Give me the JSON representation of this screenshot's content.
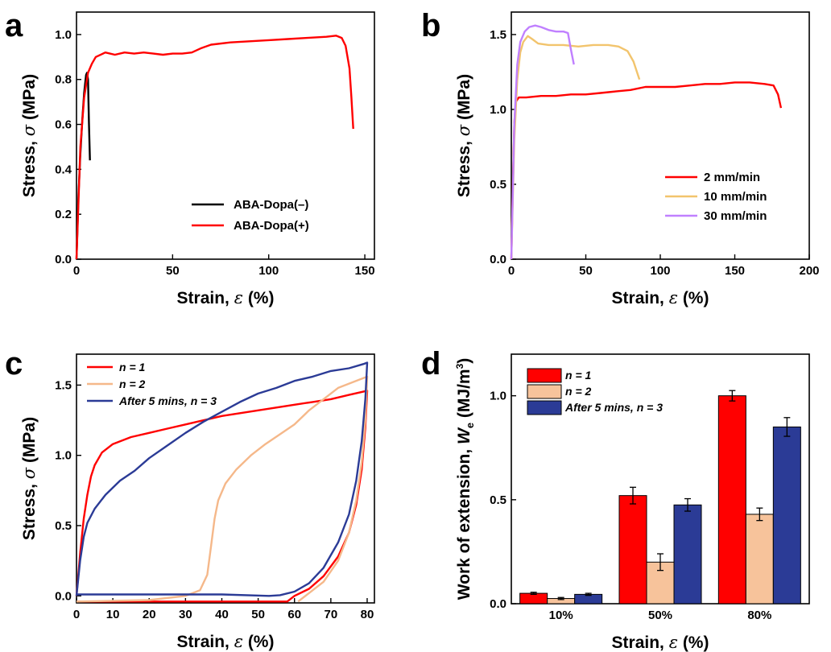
{
  "chart_data": [
    {
      "panel": "a",
      "type": "line",
      "xlabel_prefix": "Strain,",
      "xlabel_symbol": "ε",
      "xlabel_unit": "(%)",
      "ylabel_prefix": "Stress,",
      "ylabel_symbol": "σ",
      "ylabel_unit": "(MPa)",
      "xlim": [
        0,
        155
      ],
      "ylim": [
        0,
        1.1
      ],
      "xticks": [
        "0",
        "50",
        "100",
        "150"
      ],
      "xtick_values": [
        0,
        50,
        100,
        150
      ],
      "yticks": [
        "0.0",
        "0.2",
        "0.4",
        "0.6",
        "0.8",
        "1.0"
      ],
      "ytick_values": [
        0,
        0.2,
        0.4,
        0.6,
        0.8,
        1.0
      ],
      "legend_position": "bottom-right",
      "series": [
        {
          "name": "ABA-Dopa(–)",
          "color": "#000000",
          "points": [
            [
              0,
              0
            ],
            [
              1,
              0.28
            ],
            [
              2,
              0.47
            ],
            [
              3,
              0.62
            ],
            [
              4,
              0.74
            ],
            [
              5,
              0.82
            ],
            [
              5.5,
              0.83
            ],
            [
              6,
              0.8
            ],
            [
              6.5,
              0.6
            ],
            [
              7,
              0.44
            ]
          ]
        },
        {
          "name": "ABA-Dopa(+)",
          "color": "#ff0000",
          "points": [
            [
              0,
              0
            ],
            [
              2,
              0.5
            ],
            [
              4,
              0.72
            ],
            [
              6,
              0.83
            ],
            [
              8,
              0.87
            ],
            [
              10,
              0.9
            ],
            [
              15,
              0.92
            ],
            [
              20,
              0.91
            ],
            [
              25,
              0.92
            ],
            [
              30,
              0.915
            ],
            [
              35,
              0.92
            ],
            [
              40,
              0.915
            ],
            [
              45,
              0.91
            ],
            [
              50,
              0.915
            ],
            [
              55,
              0.915
            ],
            [
              60,
              0.92
            ],
            [
              65,
              0.94
            ],
            [
              70,
              0.955
            ],
            [
              80,
              0.965
            ],
            [
              90,
              0.97
            ],
            [
              100,
              0.975
            ],
            [
              110,
              0.98
            ],
            [
              120,
              0.985
            ],
            [
              130,
              0.99
            ],
            [
              135,
              0.995
            ],
            [
              138,
              0.985
            ],
            [
              140,
              0.95
            ],
            [
              142,
              0.85
            ],
            [
              143,
              0.72
            ],
            [
              144,
              0.58
            ]
          ]
        }
      ]
    },
    {
      "panel": "b",
      "type": "line",
      "xlabel_prefix": "Strain,",
      "xlabel_symbol": "ε",
      "xlabel_unit": "(%)",
      "ylabel_prefix": "Stress,",
      "ylabel_symbol": "σ",
      "ylabel_unit": "(MPa)",
      "xlim": [
        0,
        200
      ],
      "ylim": [
        0,
        1.65
      ],
      "xticks": [
        "0",
        "50",
        "100",
        "150",
        "200"
      ],
      "xtick_values": [
        0,
        50,
        100,
        150,
        200
      ],
      "yticks": [
        "0.0",
        "0.5",
        "1.0",
        "1.5"
      ],
      "ytick_values": [
        0,
        0.5,
        1.0,
        1.5
      ],
      "legend_position": "bottom-right",
      "series": [
        {
          "name": "2 mm/min",
          "color": "#ff0000",
          "points": [
            [
              0,
              0
            ],
            [
              1,
              0.5
            ],
            [
              2,
              0.9
            ],
            [
              3,
              1.05
            ],
            [
              5,
              1.08
            ],
            [
              10,
              1.08
            ],
            [
              20,
              1.09
            ],
            [
              30,
              1.09
            ],
            [
              40,
              1.1
            ],
            [
              50,
              1.1
            ],
            [
              60,
              1.11
            ],
            [
              70,
              1.12
            ],
            [
              80,
              1.13
            ],
            [
              90,
              1.15
            ],
            [
              100,
              1.15
            ],
            [
              110,
              1.15
            ],
            [
              120,
              1.16
            ],
            [
              130,
              1.17
            ],
            [
              140,
              1.17
            ],
            [
              150,
              1.18
            ],
            [
              160,
              1.18
            ],
            [
              170,
              1.17
            ],
            [
              176,
              1.16
            ],
            [
              179,
              1.1
            ],
            [
              181,
              1.01
            ]
          ]
        },
        {
          "name": "10 mm/min",
          "color": "#f2c46d",
          "points": [
            [
              0,
              0
            ],
            [
              2,
              0.8
            ],
            [
              4,
              1.2
            ],
            [
              6,
              1.38
            ],
            [
              8,
              1.45
            ],
            [
              11,
              1.49
            ],
            [
              14,
              1.47
            ],
            [
              18,
              1.44
            ],
            [
              25,
              1.43
            ],
            [
              35,
              1.43
            ],
            [
              45,
              1.42
            ],
            [
              55,
              1.43
            ],
            [
              65,
              1.43
            ],
            [
              72,
              1.42
            ],
            [
              78,
              1.39
            ],
            [
              82,
              1.32
            ],
            [
              86,
              1.2
            ]
          ]
        },
        {
          "name": "30 mm/min",
          "color": "#c080ff",
          "points": [
            [
              0,
              0
            ],
            [
              2,
              0.9
            ],
            [
              4,
              1.3
            ],
            [
              6,
              1.45
            ],
            [
              9,
              1.52
            ],
            [
              12,
              1.55
            ],
            [
              16,
              1.56
            ],
            [
              20,
              1.55
            ],
            [
              25,
              1.53
            ],
            [
              30,
              1.52
            ],
            [
              35,
              1.52
            ],
            [
              38,
              1.51
            ],
            [
              40,
              1.4
            ],
            [
              42,
              1.3
            ]
          ]
        }
      ]
    },
    {
      "panel": "c",
      "type": "line",
      "xlabel_prefix": "Strain,",
      "xlabel_symbol": "ε",
      "xlabel_unit": "(%)",
      "ylabel_prefix": "Stress,",
      "ylabel_symbol": "σ",
      "ylabel_unit": "(MPa)",
      "xlim": [
        0,
        82
      ],
      "ylim": [
        -0.05,
        1.72
      ],
      "xticks": [
        "0",
        "10",
        "20",
        "30",
        "40",
        "50",
        "60",
        "70",
        "80"
      ],
      "xtick_values": [
        0,
        10,
        20,
        30,
        40,
        50,
        60,
        70,
        80
      ],
      "yticks": [
        "0.0",
        "0.5",
        "1.0",
        "1.5"
      ],
      "ytick_values": [
        0,
        0.5,
        1.0,
        1.5
      ],
      "legend_position": "top-left",
      "series": [
        {
          "name": "n = 1",
          "name_italic_part": "n",
          "color": "#ff0000",
          "points": [
            [
              0,
              0
            ],
            [
              1,
              0.3
            ],
            [
              2,
              0.55
            ],
            [
              3,
              0.72
            ],
            [
              4,
              0.85
            ],
            [
              5,
              0.93
            ],
            [
              7,
              1.02
            ],
            [
              10,
              1.08
            ],
            [
              15,
              1.13
            ],
            [
              20,
              1.16
            ],
            [
              25,
              1.19
            ],
            [
              30,
              1.22
            ],
            [
              35,
              1.25
            ],
            [
              40,
              1.28
            ],
            [
              45,
              1.3
            ],
            [
              50,
              1.32
            ],
            [
              55,
              1.34
            ],
            [
              60,
              1.36
            ],
            [
              65,
              1.38
            ],
            [
              70,
              1.4
            ],
            [
              75,
              1.43
            ],
            [
              80,
              1.46
            ],
            [
              79.5,
              1.2
            ],
            [
              78.5,
              0.9
            ],
            [
              77,
              0.65
            ],
            [
              75,
              0.45
            ],
            [
              72,
              0.28
            ],
            [
              68,
              0.14
            ],
            [
              64,
              0.05
            ],
            [
              60,
              0.0
            ],
            [
              58,
              -0.04
            ],
            [
              30,
              -0.04
            ],
            [
              0,
              -0.04
            ]
          ]
        },
        {
          "name": "n = 2",
          "name_italic_part": "n",
          "color": "#f5b88a",
          "points": [
            [
              0,
              -0.04
            ],
            [
              20,
              -0.03
            ],
            [
              30,
              0.0
            ],
            [
              34,
              0.04
            ],
            [
              36,
              0.15
            ],
            [
              37,
              0.35
            ],
            [
              38,
              0.55
            ],
            [
              39,
              0.68
            ],
            [
              41,
              0.8
            ],
            [
              44,
              0.9
            ],
            [
              48,
              1.0
            ],
            [
              52,
              1.08
            ],
            [
              56,
              1.15
            ],
            [
              60,
              1.22
            ],
            [
              64,
              1.32
            ],
            [
              68,
              1.4
            ],
            [
              72,
              1.48
            ],
            [
              76,
              1.52
            ],
            [
              80,
              1.56
            ],
            [
              79.5,
              1.25
            ],
            [
              78.5,
              0.95
            ],
            [
              77,
              0.68
            ],
            [
              75,
              0.45
            ],
            [
              72,
              0.25
            ],
            [
              68,
              0.1
            ],
            [
              64,
              0.02
            ],
            [
              61,
              -0.04
            ]
          ]
        },
        {
          "name": "After 5 mins, n = 3",
          "name_italic_part": "n",
          "color": "#2b3b96",
          "points": [
            [
              0,
              0
            ],
            [
              1,
              0.25
            ],
            [
              2,
              0.42
            ],
            [
              3,
              0.52
            ],
            [
              5,
              0.62
            ],
            [
              8,
              0.72
            ],
            [
              12,
              0.82
            ],
            [
              16,
              0.89
            ],
            [
              20,
              0.98
            ],
            [
              25,
              1.07
            ],
            [
              30,
              1.16
            ],
            [
              35,
              1.24
            ],
            [
              40,
              1.31
            ],
            [
              45,
              1.38
            ],
            [
              50,
              1.44
            ],
            [
              55,
              1.48
            ],
            [
              60,
              1.53
            ],
            [
              65,
              1.56
            ],
            [
              70,
              1.6
            ],
            [
              75,
              1.62
            ],
            [
              79,
              1.65
            ],
            [
              80,
              1.66
            ],
            [
              79.5,
              1.4
            ],
            [
              78.5,
              1.1
            ],
            [
              77,
              0.82
            ],
            [
              75,
              0.58
            ],
            [
              72,
              0.38
            ],
            [
              68,
              0.2
            ],
            [
              64,
              0.09
            ],
            [
              60,
              0.03
            ],
            [
              56,
              0.005
            ],
            [
              53,
              0.0
            ],
            [
              40,
              0.01
            ],
            [
              20,
              0.01
            ],
            [
              0,
              0.01
            ]
          ]
        }
      ]
    },
    {
      "panel": "d",
      "type": "bar",
      "xlabel_prefix": "Strain,",
      "xlabel_symbol": "ε",
      "xlabel_unit": "(%)",
      "ylabel_prefix": "Work of extension,",
      "ylabel_symbol": "W",
      "ylabel_sub": "e",
      "ylabel_unit": "(MJ/m",
      "ylabel_sup": "3",
      "ylabel_close": ")",
      "ylim": [
        0,
        1.2
      ],
      "yticks": [
        "0.0",
        "0.5",
        "1.0"
      ],
      "ytick_values": [
        0,
        0.5,
        1.0
      ],
      "categories": [
        "10%",
        "50%",
        "80%"
      ],
      "legend_position": "top-left",
      "series": [
        {
          "name": "n = 1",
          "name_italic_part": "n",
          "color": "#ff0000",
          "values": [
            0.05,
            0.52,
            1.0
          ],
          "errors": [
            0.005,
            0.04,
            0.025
          ]
        },
        {
          "name": "n = 2",
          "name_italic_part": "n",
          "color": "#f7c39b",
          "values": [
            0.025,
            0.2,
            0.43
          ],
          "errors": [
            0.005,
            0.04,
            0.03
          ]
        },
        {
          "name": "After 5 mins, n = 3",
          "name_italic_part": "n",
          "color": "#2b3b96",
          "values": [
            0.045,
            0.475,
            0.85
          ],
          "errors": [
            0.005,
            0.03,
            0.045
          ]
        }
      ]
    }
  ],
  "panel_letters": [
    "a",
    "b",
    "c",
    "d"
  ]
}
